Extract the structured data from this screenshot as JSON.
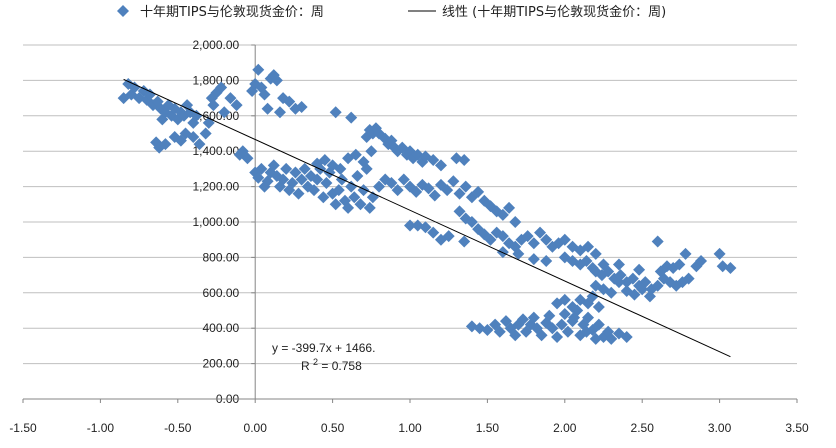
{
  "chart_data": {
    "type": "scatter",
    "title": "",
    "xlabel": "",
    "ylabel": "",
    "xlim": [
      -1.5,
      3.5
    ],
    "ylim": [
      0,
      2000
    ],
    "x_ticks": [
      "-1.50",
      "-1.00",
      "-0.50",
      "0.00",
      "0.50",
      "1.00",
      "1.50",
      "2.00",
      "2.50",
      "3.00",
      "3.50"
    ],
    "y_ticks": [
      "0.00",
      "200.00",
      "400.00",
      "600.00",
      "800.00",
      "1,000.00",
      "1,200.00",
      "1,400.00",
      "1,600.00",
      "1,800.00",
      "2,000.00"
    ],
    "grid": "horizontal",
    "legend_position": "top",
    "colors": {
      "marker": "#4f81bd",
      "trendline": "#000000",
      "grid": "#bfbfbf"
    },
    "series": [
      {
        "name": "十年期TIPS与伦敦现货金价：周",
        "marker": "diamond",
        "points": [
          [
            -0.85,
            1700
          ],
          [
            -0.82,
            1780
          ],
          [
            -0.8,
            1720
          ],
          [
            -0.78,
            1760
          ],
          [
            -0.75,
            1700
          ],
          [
            -0.72,
            1740
          ],
          [
            -0.7,
            1690
          ],
          [
            -0.68,
            1720
          ],
          [
            -0.66,
            1660
          ],
          [
            -0.63,
            1680
          ],
          [
            -0.61,
            1640
          ],
          [
            -0.6,
            1580
          ],
          [
            -0.58,
            1620
          ],
          [
            -0.56,
            1660
          ],
          [
            -0.54,
            1600
          ],
          [
            -0.52,
            1640
          ],
          [
            -0.5,
            1580
          ],
          [
            -0.48,
            1620
          ],
          [
            -0.46,
            1600
          ],
          [
            -0.44,
            1660
          ],
          [
            -0.42,
            1620
          ],
          [
            -0.4,
            1560
          ],
          [
            -0.38,
            1600
          ],
          [
            -0.64,
            1450
          ],
          [
            -0.62,
            1420
          ],
          [
            -0.58,
            1440
          ],
          [
            -0.52,
            1480
          ],
          [
            -0.48,
            1460
          ],
          [
            -0.45,
            1500
          ],
          [
            -0.4,
            1480
          ],
          [
            -0.36,
            1440
          ],
          [
            -0.32,
            1500
          ],
          [
            -0.3,
            1560
          ],
          [
            -0.28,
            1700
          ],
          [
            -0.25,
            1730
          ],
          [
            -0.22,
            1760
          ],
          [
            -0.27,
            1660
          ],
          [
            -0.2,
            1620
          ],
          [
            -0.16,
            1700
          ],
          [
            -0.12,
            1660
          ],
          [
            -0.1,
            1380
          ],
          [
            -0.08,
            1400
          ],
          [
            -0.05,
            1360
          ],
          [
            -0.02,
            1740
          ],
          [
            0.0,
            1780
          ],
          [
            0.02,
            1860
          ],
          [
            0.04,
            1760
          ],
          [
            0.06,
            1720
          ],
          [
            0.08,
            1640
          ],
          [
            0.1,
            1810
          ],
          [
            0.12,
            1830
          ],
          [
            0.14,
            1800
          ],
          [
            0.16,
            1620
          ],
          [
            0.18,
            1700
          ],
          [
            0.22,
            1680
          ],
          [
            0.26,
            1640
          ],
          [
            0.3,
            1650
          ],
          [
            0.0,
            1280
          ],
          [
            0.02,
            1250
          ],
          [
            0.04,
            1300
          ],
          [
            0.06,
            1200
          ],
          [
            0.08,
            1230
          ],
          [
            0.1,
            1280
          ],
          [
            0.12,
            1320
          ],
          [
            0.14,
            1260
          ],
          [
            0.16,
            1200
          ],
          [
            0.18,
            1240
          ],
          [
            0.2,
            1300
          ],
          [
            0.22,
            1180
          ],
          [
            0.24,
            1220
          ],
          [
            0.26,
            1280
          ],
          [
            0.28,
            1160
          ],
          [
            0.3,
            1240
          ],
          [
            0.32,
            1300
          ],
          [
            0.34,
            1200
          ],
          [
            0.36,
            1260
          ],
          [
            0.38,
            1180
          ],
          [
            0.4,
            1240
          ],
          [
            0.42,
            1300
          ],
          [
            0.44,
            1140
          ],
          [
            0.46,
            1220
          ],
          [
            0.48,
            1280
          ],
          [
            0.5,
            1160
          ],
          [
            0.52,
            1100
          ],
          [
            0.54,
            1180
          ],
          [
            0.56,
            1240
          ],
          [
            0.58,
            1120
          ],
          [
            0.6,
            1080
          ],
          [
            0.62,
            1200
          ],
          [
            0.64,
            1140
          ],
          [
            0.66,
            1260
          ],
          [
            0.68,
            1100
          ],
          [
            0.7,
            1180
          ],
          [
            0.72,
            1300
          ],
          [
            0.74,
            1080
          ],
          [
            0.76,
            1140
          ],
          [
            0.4,
            1330
          ],
          [
            0.45,
            1350
          ],
          [
            0.5,
            1320
          ],
          [
            0.55,
            1300
          ],
          [
            0.6,
            1360
          ],
          [
            0.65,
            1380
          ],
          [
            0.7,
            1340
          ],
          [
            0.75,
            1400
          ],
          [
            0.52,
            1620
          ],
          [
            0.62,
            1590
          ],
          [
            0.72,
            1480
          ],
          [
            0.74,
            1520
          ],
          [
            0.76,
            1500
          ],
          [
            0.78,
            1530
          ],
          [
            0.8,
            1500
          ],
          [
            0.84,
            1470
          ],
          [
            0.86,
            1440
          ],
          [
            0.88,
            1460
          ],
          [
            0.9,
            1420
          ],
          [
            0.92,
            1400
          ],
          [
            0.95,
            1420
          ],
          [
            0.98,
            1380
          ],
          [
            1.0,
            1400
          ],
          [
            1.02,
            1360
          ],
          [
            1.05,
            1380
          ],
          [
            1.08,
            1340
          ],
          [
            1.1,
            1370
          ],
          [
            1.15,
            1350
          ],
          [
            1.2,
            1320
          ],
          [
            1.3,
            1360
          ],
          [
            1.35,
            1350
          ],
          [
            0.8,
            1200
          ],
          [
            0.84,
            1240
          ],
          [
            0.88,
            1220
          ],
          [
            0.92,
            1180
          ],
          [
            0.96,
            1240
          ],
          [
            1.0,
            1200
          ],
          [
            1.04,
            1170
          ],
          [
            1.08,
            1210
          ],
          [
            1.12,
            1190
          ],
          [
            1.16,
            1150
          ],
          [
            1.2,
            1210
          ],
          [
            1.24,
            1180
          ],
          [
            1.28,
            1230
          ],
          [
            1.32,
            1160
          ],
          [
            1.36,
            1200
          ],
          [
            1.4,
            1140
          ],
          [
            1.44,
            1170
          ],
          [
            1.48,
            1120
          ],
          [
            1.52,
            1090
          ],
          [
            1.56,
            1060
          ],
          [
            1.6,
            1040
          ],
          [
            1.64,
            1080
          ],
          [
            1.68,
            1000
          ],
          [
            1.32,
            1060
          ],
          [
            1.36,
            1020
          ],
          [
            1.4,
            1000
          ],
          [
            1.44,
            960
          ],
          [
            1.48,
            930
          ],
          [
            1.52,
            900
          ],
          [
            1.56,
            940
          ],
          [
            1.6,
            920
          ],
          [
            1.64,
            880
          ],
          [
            1.68,
            860
          ],
          [
            1.72,
            900
          ],
          [
            1.76,
            920
          ],
          [
            1.8,
            880
          ],
          [
            1.84,
            940
          ],
          [
            1.88,
            900
          ],
          [
            1.92,
            860
          ],
          [
            1.96,
            880
          ],
          [
            1.0,
            980
          ],
          [
            1.05,
            980
          ],
          [
            1.1,
            970
          ],
          [
            1.15,
            940
          ],
          [
            1.2,
            900
          ],
          [
            1.25,
            920
          ],
          [
            1.35,
            890
          ],
          [
            1.6,
            830
          ],
          [
            1.7,
            820
          ],
          [
            1.8,
            790
          ],
          [
            1.88,
            780
          ],
          [
            2.0,
            900
          ],
          [
            2.05,
            860
          ],
          [
            2.1,
            840
          ],
          [
            2.15,
            860
          ],
          [
            2.2,
            820
          ],
          [
            2.0,
            800
          ],
          [
            2.05,
            780
          ],
          [
            2.1,
            760
          ],
          [
            2.14,
            780
          ],
          [
            2.18,
            740
          ],
          [
            2.2,
            720
          ],
          [
            2.24,
            700
          ],
          [
            2.28,
            720
          ],
          [
            2.32,
            680
          ],
          [
            2.36,
            700
          ],
          [
            2.4,
            660
          ],
          [
            2.44,
            680
          ],
          [
            2.48,
            640
          ],
          [
            2.52,
            660
          ],
          [
            2.56,
            620
          ],
          [
            2.6,
            640
          ],
          [
            2.64,
            680
          ],
          [
            2.68,
            660
          ],
          [
            2.72,
            640
          ],
          [
            2.76,
            660
          ],
          [
            2.8,
            680
          ],
          [
            2.2,
            640
          ],
          [
            2.25,
            620
          ],
          [
            2.3,
            600
          ],
          [
            2.35,
            660
          ],
          [
            2.4,
            610
          ],
          [
            2.45,
            590
          ],
          [
            2.5,
            620
          ],
          [
            2.55,
            580
          ],
          [
            2.62,
            720
          ],
          [
            2.66,
            750
          ],
          [
            2.7,
            740
          ],
          [
            2.74,
            760
          ],
          [
            2.78,
            820
          ],
          [
            2.85,
            750
          ],
          [
            2.88,
            780
          ],
          [
            3.0,
            820
          ],
          [
            3.02,
            750
          ],
          [
            3.07,
            740
          ],
          [
            2.6,
            890
          ],
          [
            2.25,
            760
          ],
          [
            2.35,
            760
          ],
          [
            2.48,
            730
          ],
          [
            1.4,
            410
          ],
          [
            1.45,
            400
          ],
          [
            1.5,
            390
          ],
          [
            1.55,
            420
          ],
          [
            1.58,
            380
          ],
          [
            1.62,
            440
          ],
          [
            1.65,
            400
          ],
          [
            1.68,
            360
          ],
          [
            1.7,
            420
          ],
          [
            1.73,
            450
          ],
          [
            1.75,
            380
          ],
          [
            1.78,
            420
          ],
          [
            1.8,
            460
          ],
          [
            1.82,
            400
          ],
          [
            1.85,
            360
          ],
          [
            1.88,
            430
          ],
          [
            1.9,
            470
          ],
          [
            1.92,
            400
          ],
          [
            1.95,
            350
          ],
          [
            1.98,
            420
          ],
          [
            2.0,
            480
          ],
          [
            2.02,
            380
          ],
          [
            2.05,
            440
          ],
          [
            2.08,
            500
          ],
          [
            2.1,
            360
          ],
          [
            2.12,
            420
          ],
          [
            2.15,
            460
          ],
          [
            2.18,
            390
          ],
          [
            2.2,
            340
          ],
          [
            2.22,
            420
          ],
          [
            2.25,
            350
          ],
          [
            2.28,
            380
          ],
          [
            2.3,
            340
          ],
          [
            2.35,
            370
          ],
          [
            2.4,
            350
          ],
          [
            1.95,
            540
          ],
          [
            2.0,
            560
          ],
          [
            2.05,
            520
          ],
          [
            2.1,
            560
          ],
          [
            2.15,
            540
          ],
          [
            2.18,
            580
          ],
          [
            2.22,
            520
          ],
          [
            2.06,
            460
          ],
          [
            2.14,
            380
          ]
        ]
      },
      {
        "name": "线性 (十年期TIPS与伦敦现货金价：周)",
        "type": "linear-trendline",
        "slope": -399.7,
        "intercept": 1466,
        "x_range": [
          -0.85,
          3.07
        ]
      }
    ],
    "annotation": {
      "equation": "y = -399.7x + 1466.",
      "r2_prefix": "R",
      "r2_sup": "2",
      "r2_value": " = 0.758"
    }
  },
  "legend": {
    "series1_label": "十年期TIPS与伦敦现货金价：周",
    "series2_label": "线性 (十年期TIPS与伦敦现货金价：周)"
  }
}
